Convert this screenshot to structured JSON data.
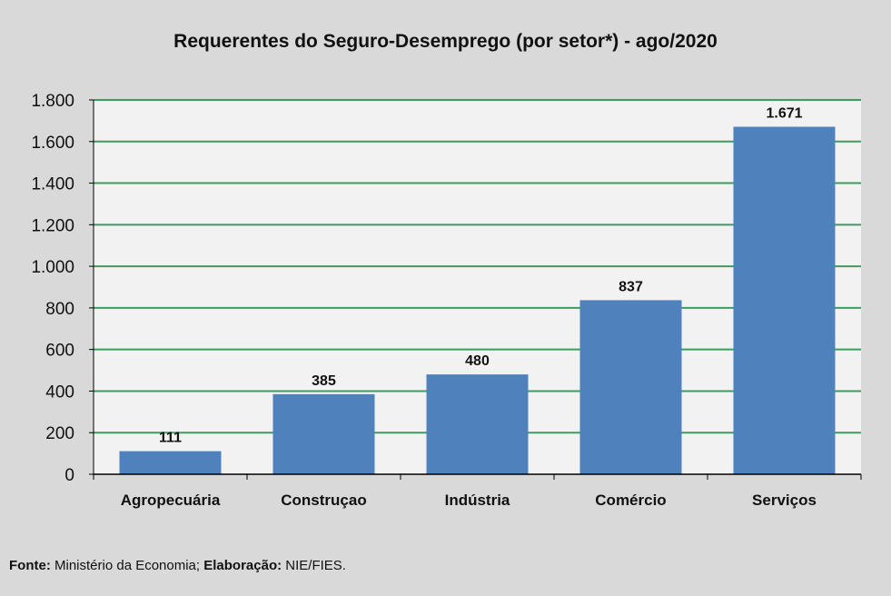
{
  "chart_data": {
    "type": "bar",
    "title": "Requerentes do Seguro-Desemprego (por setor*) - ago/2020",
    "categories": [
      "Agropecuária",
      "Construçao",
      "Indústria",
      "Comércio",
      "Serviços"
    ],
    "values": [
      111,
      385,
      480,
      837,
      1671
    ],
    "data_labels": [
      "111",
      "385",
      "480",
      "837",
      "1.671"
    ],
    "xlabel": "",
    "ylabel": "",
    "ylim": [
      0,
      1800
    ],
    "yticks": [
      0,
      200,
      400,
      600,
      800,
      1000,
      1200,
      1400,
      1600,
      1800
    ],
    "ytick_labels": [
      "0",
      "200",
      "400",
      "600",
      "800",
      "1.000",
      "1.200",
      "1.400",
      "1.600",
      "1.800"
    ],
    "grid": true,
    "colors": {
      "bar": "#4f81bd",
      "grid": "#3f9b5f",
      "plot_bg": "#f2f2f2",
      "bg": "#d9d9d9"
    }
  },
  "footer": {
    "source_label": "Fonte:",
    "source_value": " Ministério da Economia; ",
    "credit_label": "Elaboração:",
    "credit_value": " NIE/FIES."
  }
}
